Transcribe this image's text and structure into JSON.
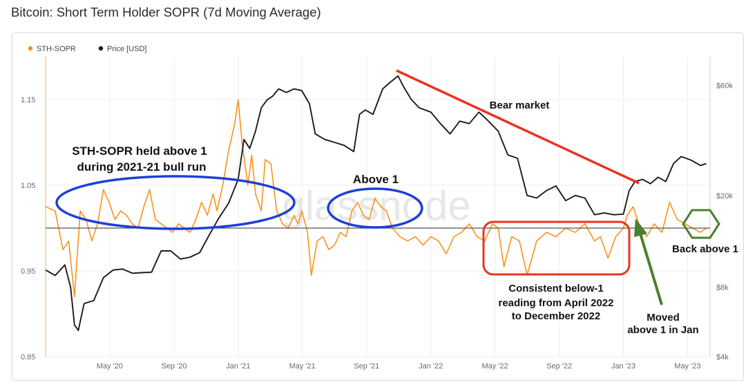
{
  "title": "Bitcoin: Short Term Holder SOPR (7d Moving Average)",
  "watermark": "glassnode",
  "colors": {
    "sopr": "#f7931a",
    "price": "#1a1a1a",
    "blue": "#1f3fd6",
    "red": "#e8331f",
    "green": "#4b7f2e",
    "baseline": "#555555",
    "grid": "#ececec"
  },
  "chart_data": {
    "type": "line",
    "title": "Bitcoin: Short Term Holder SOPR (7d Moving Average)",
    "x_range": [
      2020.0,
      2023.45
    ],
    "y_left": {
      "label": "STH-SOPR",
      "range": [
        0.85,
        1.2
      ],
      "ticks": [
        1.15,
        1.05,
        0.95,
        0.85
      ],
      "tick_labels": [
        "1.15",
        "1.05",
        "0.95",
        "0.85"
      ]
    },
    "y_right": {
      "label": "Price [USD]",
      "scale": "log",
      "range": [
        4000,
        80000
      ],
      "ticks": [
        60000,
        20000,
        8000,
        4000
      ],
      "tick_labels": [
        "$60k",
        "$20k",
        "$8k",
        "$4k"
      ]
    },
    "x_ticks": [
      2020.333,
      2020.667,
      2021.0,
      2021.333,
      2021.667,
      2022.0,
      2022.333,
      2022.667,
      2023.0,
      2023.333
    ],
    "x_tick_labels": [
      "May '20",
      "Sep '20",
      "Jan '21",
      "May '21",
      "Sep '21",
      "Jan '22",
      "May '22",
      "Sep '22",
      "Jan '23",
      "May '23"
    ],
    "reference_line": 1.0,
    "legend": [
      "STH-SOPR",
      "Price [USD]"
    ],
    "series": [
      {
        "name": "STH-SOPR",
        "axis": "left",
        "x": [
          2020.0,
          2020.05,
          2020.09,
          2020.12,
          2020.15,
          2020.18,
          2020.21,
          2020.24,
          2020.27,
          2020.3,
          2020.33,
          2020.36,
          2020.39,
          2020.42,
          2020.45,
          2020.48,
          2020.51,
          2020.54,
          2020.57,
          2020.6,
          2020.63,
          2020.66,
          2020.69,
          2020.72,
          2020.75,
          2020.78,
          2020.81,
          2020.84,
          2020.87,
          2020.89,
          2020.92,
          2020.95,
          2020.98,
          2021.0,
          2021.02,
          2021.05,
          2021.07,
          2021.09,
          2021.12,
          2021.14,
          2021.17,
          2021.2,
          2021.23,
          2021.26,
          2021.29,
          2021.31,
          2021.33,
          2021.36,
          2021.38,
          2021.41,
          2021.44,
          2021.47,
          2021.5,
          2021.53,
          2021.56,
          2021.59,
          2021.62,
          2021.65,
          2021.68,
          2021.71,
          2021.74,
          2021.77,
          2021.8,
          2021.84,
          2021.88,
          2021.92,
          2021.96,
          2022.0,
          2022.04,
          2022.08,
          2022.12,
          2022.16,
          2022.2,
          2022.24,
          2022.28,
          2022.32,
          2022.35,
          2022.38,
          2022.42,
          2022.46,
          2022.5,
          2022.55,
          2022.6,
          2022.65,
          2022.7,
          2022.75,
          2022.8,
          2022.85,
          2022.88,
          2022.92,
          2022.96,
          2023.0,
          2023.02,
          2023.05,
          2023.08,
          2023.12,
          2023.16,
          2023.2,
          2023.24,
          2023.28,
          2023.32,
          2023.36,
          2023.4,
          2023.43
        ],
        "y": [
          1.025,
          1.02,
          0.975,
          0.985,
          0.92,
          1.02,
          1.01,
          0.985,
          1.005,
          1.045,
          1.03,
          1.01,
          1.02,
          1.015,
          1.005,
          1.0,
          1.025,
          1.045,
          1.01,
          1.005,
          1.0,
          0.995,
          1.005,
          1.0,
          0.995,
          1.01,
          1.03,
          1.015,
          1.04,
          1.02,
          1.05,
          1.09,
          1.12,
          1.15,
          1.1,
          1.05,
          1.085,
          1.04,
          1.02,
          1.08,
          1.075,
          1.02,
          1.005,
          1.0,
          1.015,
          1.005,
          1.02,
          0.995,
          0.945,
          0.985,
          0.99,
          0.975,
          0.98,
          0.995,
          0.99,
          1.02,
          1.03,
          1.015,
          1.01,
          1.035,
          1.025,
          1.02,
          1.0,
          0.99,
          0.985,
          0.99,
          0.98,
          0.99,
          0.985,
          0.97,
          0.99,
          0.995,
          1.005,
          0.99,
          0.985,
          1.005,
          1.0,
          0.955,
          0.99,
          0.985,
          0.945,
          0.985,
          0.995,
          0.99,
          1.0,
          0.995,
          1.005,
          0.985,
          0.99,
          0.965,
          0.99,
          1.0,
          1.015,
          1.025,
          1.005,
          0.99,
          1.005,
          0.995,
          1.03,
          1.01,
          1.005,
          1.0,
          0.995,
          1.0
        ]
      },
      {
        "name": "Price [USD]",
        "axis": "right",
        "x": [
          2020.0,
          2020.05,
          2020.1,
          2020.13,
          2020.15,
          2020.17,
          2020.2,
          2020.25,
          2020.3,
          2020.35,
          2020.4,
          2020.45,
          2020.5,
          2020.55,
          2020.6,
          2020.65,
          2020.7,
          2020.75,
          2020.8,
          2020.85,
          2020.9,
          2020.95,
          2021.0,
          2021.03,
          2021.06,
          2021.09,
          2021.12,
          2021.15,
          2021.18,
          2021.21,
          2021.25,
          2021.29,
          2021.33,
          2021.37,
          2021.4,
          2021.45,
          2021.5,
          2021.55,
          2021.6,
          2021.63,
          2021.66,
          2021.7,
          2021.75,
          2021.79,
          2021.83,
          2021.86,
          2021.9,
          2021.94,
          2022.0,
          2022.05,
          2022.1,
          2022.15,
          2022.2,
          2022.25,
          2022.3,
          2022.35,
          2022.4,
          2022.45,
          2022.5,
          2022.55,
          2022.6,
          2022.65,
          2022.7,
          2022.75,
          2022.8,
          2022.85,
          2022.9,
          2022.95,
          2023.0,
          2023.03,
          2023.06,
          2023.1,
          2023.14,
          2023.18,
          2023.22,
          2023.26,
          2023.3,
          2023.35,
          2023.4,
          2023.43
        ],
        "y": [
          9500,
          9000,
          10000,
          8000,
          5500,
          5200,
          6800,
          7000,
          8800,
          9500,
          9600,
          9200,
          9250,
          9300,
          11500,
          11500,
          10600,
          10800,
          11300,
          13500,
          16000,
          18500,
          23500,
          35000,
          32000,
          38000,
          48000,
          52000,
          54000,
          58000,
          56000,
          58000,
          57000,
          50000,
          37000,
          35000,
          34000,
          33000,
          31000,
          45000,
          47000,
          45000,
          58000,
          62000,
          66000,
          59000,
          52000,
          48000,
          46000,
          41000,
          37000,
          42000,
          41000,
          46000,
          42000,
          38000,
          30000,
          29000,
          20000,
          19500,
          21000,
          22000,
          19000,
          20000,
          19500,
          16500,
          16800,
          16500,
          16600,
          21000,
          23000,
          23500,
          22500,
          24000,
          23000,
          27500,
          29500,
          28500,
          27000,
          27500
        ]
      }
    ],
    "annotations": [
      {
        "text": "STH-SOPR held above 1",
        "line": 1
      },
      {
        "text": "during 2021-21 bull run",
        "line": 2
      },
      {
        "text": "Above 1"
      },
      {
        "text": "Bear market"
      },
      {
        "text": "Consistent below-1",
        "line": 1
      },
      {
        "text": "reading from April 2022",
        "line": 2
      },
      {
        "text": "to December 2022",
        "line": 3
      },
      {
        "text": "Moved",
        "line": 1
      },
      {
        "text": "above 1 in Jan",
        "line": 2
      },
      {
        "text": "Back above 1"
      }
    ]
  }
}
